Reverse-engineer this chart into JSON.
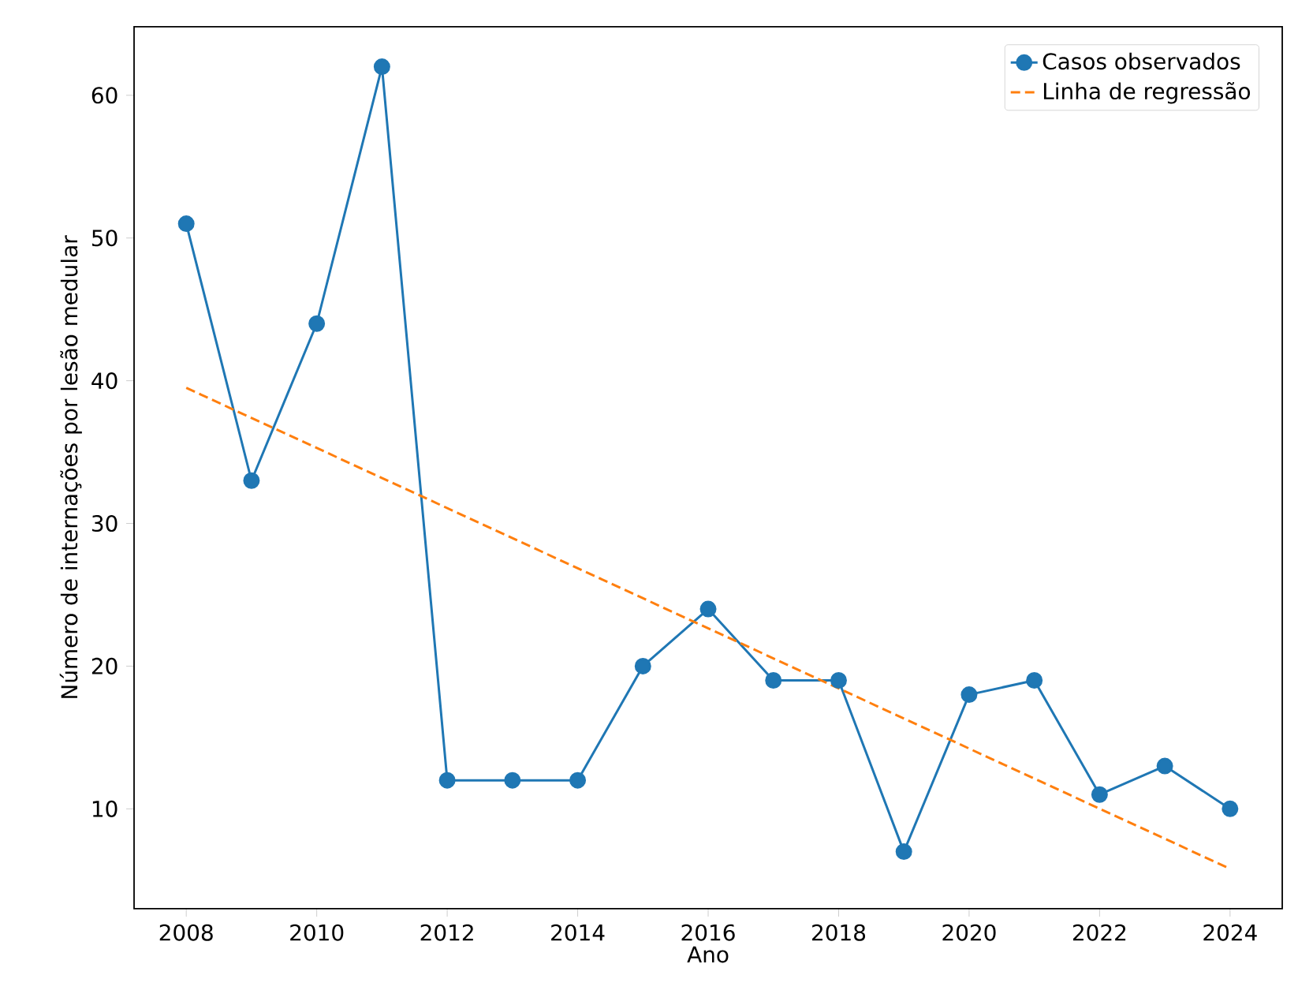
{
  "chart_data": {
    "type": "line",
    "xlabel": "Ano",
    "ylabel": "Número de internações por lesão medular",
    "x": [
      2008,
      2009,
      2010,
      2011,
      2012,
      2013,
      2014,
      2015,
      2016,
      2017,
      2018,
      2019,
      2020,
      2021,
      2022,
      2023,
      2024
    ],
    "series": [
      {
        "name": "Casos observados",
        "color": "#1f77b4",
        "marker": "circle",
        "line_style": "solid",
        "values": [
          51,
          33,
          44,
          62,
          12,
          12,
          12,
          20,
          24,
          19,
          19,
          7,
          18,
          19,
          11,
          13,
          10
        ]
      },
      {
        "name": "Linha de regressão",
        "color": "#ff7f0e",
        "marker": "none",
        "line_style": "dashed",
        "type": "line",
        "x": [
          2008,
          2024
        ],
        "values": [
          39.5,
          5.8
        ]
      }
    ],
    "xlim": [
      2007.2,
      2024.8
    ],
    "ylim": [
      3.0,
      64.8
    ],
    "xticks": [
      2008,
      2010,
      2012,
      2014,
      2016,
      2018,
      2020,
      2022,
      2024
    ],
    "yticks": [
      10,
      20,
      30,
      40,
      50,
      60
    ],
    "legend": "top right",
    "grid": false
  }
}
